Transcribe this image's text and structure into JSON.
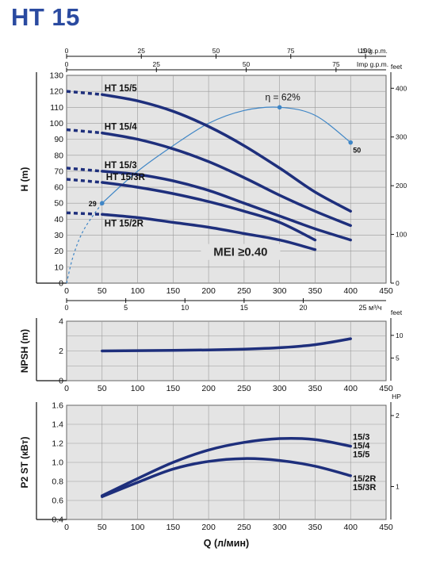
{
  "title": "HT 15",
  "colors": {
    "curve": "#1e2f7c",
    "eff": "#3f86c6",
    "grid": "#9a9a9a",
    "panel": "#e4e4e4",
    "title": "#2a4aa0"
  },
  "chart_data": [
    {
      "id": "head",
      "type": "line",
      "xlim": [
        0,
        450
      ],
      "xticks": [
        0,
        50,
        100,
        150,
        200,
        250,
        300,
        350,
        400,
        450
      ],
      "ylim": [
        0,
        130
      ],
      "yticks": [
        0,
        10,
        20,
        30,
        40,
        50,
        60,
        70,
        80,
        90,
        100,
        110,
        120,
        130
      ],
      "ylabel": "H (m)",
      "top_axes": [
        {
          "unit": "US g.p.m.",
          "ticks": [
            {
              "value": 0,
              "label": "0"
            },
            {
              "value": 25,
              "label": "25"
            },
            {
              "value": 50,
              "label": "50"
            },
            {
              "value": 75,
              "label": "75"
            },
            {
              "value": 100,
              "label": "100"
            }
          ],
          "scale_to_x": 4.21
        },
        {
          "unit": "Imp g.p.m.",
          "ticks": [
            {
              "value": 0,
              "label": "0"
            },
            {
              "value": 25,
              "label": "25"
            },
            {
              "value": 50,
              "label": "50"
            },
            {
              "value": 75,
              "label": "75"
            }
          ],
          "scale_to_x": 5.06
        }
      ],
      "bottom_axis2": {
        "unit": "25 м³/ч",
        "ticks": [
          {
            "value": 0,
            "label": "0"
          },
          {
            "value": 5,
            "label": "5"
          },
          {
            "value": 10,
            "label": "10"
          },
          {
            "value": 15,
            "label": "15"
          },
          {
            "value": 20,
            "label": "20"
          }
        ],
        "scale_to_x": 16.667
      },
      "right_axis": {
        "unit": "feet",
        "ticks": [
          {
            "value": 0,
            "label": "0"
          },
          {
            "value": 100,
            "label": "100"
          },
          {
            "value": 200,
            "label": "200"
          },
          {
            "value": 300,
            "label": "300"
          },
          {
            "value": 400,
            "label": "400"
          }
        ],
        "scale_to_y": 0.3048
      },
      "series": [
        {
          "name": "HT 15/5",
          "dashed": [
            [
              0,
              120
            ],
            [
              50,
              118
            ]
          ],
          "x": [
            50,
            100,
            150,
            200,
            250,
            300,
            350,
            400
          ],
          "y": [
            118,
            114,
            107.5,
            98,
            86,
            72,
            57,
            45
          ]
        },
        {
          "name": "HT 15/4",
          "dashed": [
            [
              0,
              96
            ],
            [
              50,
              94
            ]
          ],
          "x": [
            50,
            100,
            150,
            200,
            250,
            300,
            350,
            400
          ],
          "y": [
            94,
            90,
            84,
            76,
            66,
            55,
            45,
            36
          ]
        },
        {
          "name": "HT 15/3",
          "dashed": [
            [
              0,
              72
            ],
            [
              50,
              70
            ]
          ],
          "x": [
            50,
            100,
            150,
            200,
            250,
            300,
            350,
            400
          ],
          "y": [
            70,
            68,
            64,
            58,
            50,
            42,
            34,
            27
          ]
        },
        {
          "name": "HT 15/3R",
          "dashed": [
            [
              0,
              65
            ],
            [
              50,
              63
            ]
          ],
          "x": [
            50,
            100,
            150,
            200,
            250,
            300,
            350
          ],
          "y": [
            63,
            60,
            56,
            51,
            45,
            38,
            27
          ]
        },
        {
          "name": "HT 15/2R",
          "dashed": [
            [
              0,
              44
            ],
            [
              50,
              43
            ]
          ],
          "x": [
            50,
            100,
            150,
            200,
            250,
            300,
            350
          ],
          "y": [
            43,
            41,
            38,
            35,
            31,
            27,
            21
          ]
        }
      ],
      "efficiency": {
        "label": "η = 62%",
        "left_label": "29",
        "right_label": "50",
        "dashed": [
          [
            0,
            0
          ],
          [
            10,
            18
          ],
          [
            25,
            34
          ],
          [
            50,
            50
          ]
        ],
        "x": [
          50,
          100,
          150,
          200,
          250,
          300,
          350,
          400
        ],
        "y": [
          50,
          70,
          86,
          100,
          108,
          110,
          105,
          88
        ]
      },
      "annotation": "MEI ≥0.40"
    },
    {
      "id": "npsh",
      "type": "line",
      "xlim": [
        0,
        450
      ],
      "xticks": [
        0,
        50,
        100,
        150,
        200,
        250,
        300,
        350,
        400,
        450
      ],
      "ylim": [
        0,
        4
      ],
      "yticks": [
        0,
        2,
        4
      ],
      "yminor": [
        1,
        3
      ],
      "ylabel": "NPSH (m)",
      "right_axis": {
        "unit": "feet",
        "ticks": [
          {
            "value": 5,
            "label": "5"
          },
          {
            "value": 10,
            "label": "10"
          }
        ],
        "scale_to_y": 0.3048
      },
      "series": [
        {
          "name": "NPSH",
          "x": [
            50,
            100,
            150,
            200,
            250,
            300,
            350,
            400
          ],
          "y": [
            2.0,
            2.02,
            2.04,
            2.07,
            2.12,
            2.22,
            2.42,
            2.82
          ]
        }
      ]
    },
    {
      "id": "power",
      "type": "line",
      "xlim": [
        0,
        450
      ],
      "xticks": [
        0,
        50,
        100,
        150,
        200,
        250,
        300,
        350,
        400,
        450
      ],
      "ylim": [
        0.4,
        1.6
      ],
      "yticks": [
        0.4,
        0.6,
        0.8,
        1.0,
        1.2,
        1.4,
        1.6
      ],
      "ytick_labels": [
        "0.4",
        "0.6",
        "0.8",
        "1.0",
        "1.2",
        "1.4",
        "1.6"
      ],
      "ylabel": "P2 ST (кВт)",
      "xlabel": "Q (л/мин)",
      "right_axis": {
        "unit": "HP",
        "ticks": [
          {
            "value": 1,
            "label": "1"
          },
          {
            "value": 2,
            "label": "2"
          }
        ],
        "scale_to_y": 0.746
      },
      "series": [
        {
          "name": "15/3 15/4 15/5",
          "labels": [
            "15/3",
            "15/4",
            "15/5"
          ],
          "x": [
            50,
            100,
            150,
            200,
            250,
            300,
            350,
            400
          ],
          "y": [
            0.65,
            0.83,
            1.0,
            1.13,
            1.21,
            1.25,
            1.24,
            1.17
          ]
        },
        {
          "name": "15/2R 15/3R",
          "labels": [
            "15/2R",
            "15/3R"
          ],
          "x": [
            50,
            100,
            150,
            200,
            250,
            300,
            350,
            400
          ],
          "y": [
            0.64,
            0.79,
            0.93,
            1.01,
            1.04,
            1.02,
            0.96,
            0.86
          ]
        }
      ]
    }
  ]
}
